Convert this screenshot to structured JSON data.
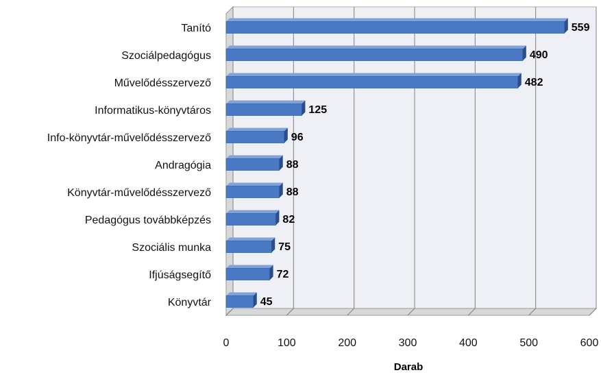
{
  "chart_data": {
    "type": "bar",
    "orientation": "horizontal",
    "title": "",
    "xlabel": "Darab",
    "ylabel": "",
    "categories": [
      "Tanító",
      "Szociálpedagógus",
      "Művelődésszervező",
      "Informatikus-könyvtáros",
      "Info-könyvtár-művelődésszervező",
      "Andragógia",
      "Könyvtár-művelődésszervező",
      "Pedagógus továbbképzés",
      "Szociális munka",
      "Ifjúságsegítő",
      "Könyvtár"
    ],
    "values": [
      559,
      490,
      482,
      125,
      96,
      88,
      88,
      82,
      75,
      72,
      45
    ],
    "value_labels": [
      "559",
      "490",
      "482",
      "125",
      "96",
      "88",
      "88",
      "82",
      "75",
      "72",
      "45"
    ],
    "xlim": [
      0,
      600
    ],
    "xticks": [
      0,
      100,
      200,
      300,
      400,
      500,
      600
    ],
    "xtick_labels": [
      "0",
      "100",
      "200",
      "300",
      "400",
      "500",
      "600"
    ],
    "grid": "vertical",
    "legend": "none",
    "style": "3d",
    "colors": {
      "bar_front": "#4A78C2",
      "bar_top": "#7EA3DC",
      "bar_side": "#2A4E8C",
      "plot_background": "#EEF0F5",
      "grid": "#808080"
    }
  }
}
